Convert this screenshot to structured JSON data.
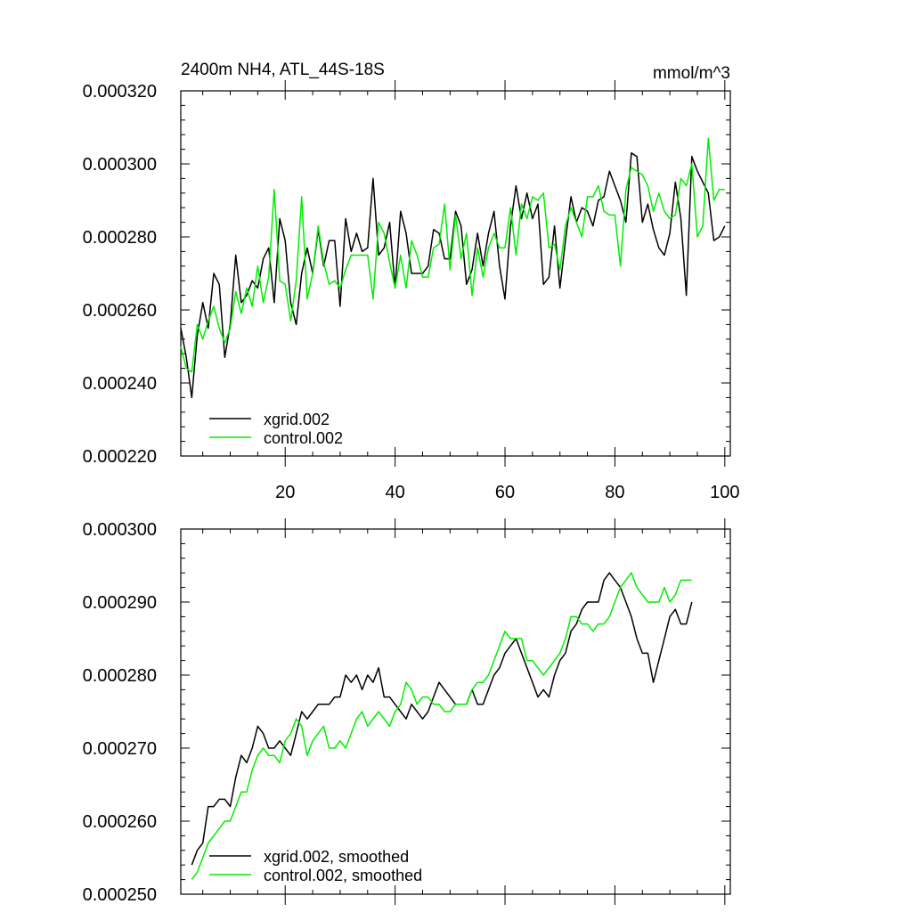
{
  "colors": {
    "xgrid": "#000000",
    "control": "#00ee00"
  },
  "chart_data": [
    {
      "type": "line",
      "title": "2400m NH4, ATL_44S-18S",
      "units": "mmol/m^3",
      "xlim": [
        1,
        101
      ],
      "ylim": [
        0.00022,
        0.00032
      ],
      "xticks": [
        20,
        40,
        60,
        80,
        100
      ],
      "xtick_labels": [
        "20",
        "40",
        "60",
        "80",
        "100"
      ],
      "yticks": [
        0.00022,
        0.00024,
        0.00026,
        0.00028,
        0.0003,
        0.00032
      ],
      "ytick_labels": [
        "0.000220",
        "0.000240",
        "0.000260",
        "0.000280",
        "0.000300",
        "0.000320"
      ],
      "legend_position": "bottom-left",
      "series": [
        {
          "name": "xgrid.002",
          "color": "#000000",
          "x_start": 1,
          "values": [
            0.000255,
            0.000247,
            0.000236,
            0.000253,
            0.000262,
            0.000255,
            0.00027,
            0.000267,
            0.000247,
            0.000256,
            0.000275,
            0.000262,
            0.000264,
            0.000268,
            0.000266,
            0.000274,
            0.000277,
            0.000262,
            0.000285,
            0.000279,
            0.000262,
            0.000256,
            0.00027,
            0.000277,
            0.00027,
            0.000282,
            0.000272,
            0.000279,
            0.000279,
            0.000261,
            0.000285,
            0.000276,
            0.000281,
            0.000276,
            0.000277,
            0.000296,
            0.000275,
            0.000277,
            0.000284,
            0.000266,
            0.000287,
            0.000281,
            0.00027,
            0.00027,
            0.00027,
            0.000272,
            0.000282,
            0.000281,
            0.000274,
            0.000274,
            0.000287,
            0.000283,
            0.000267,
            0.000271,
            0.000281,
            0.000272,
            0.000281,
            0.000287,
            0.000272,
            0.000263,
            0.000283,
            0.000294,
            0.000285,
            0.000292,
            0.000285,
            0.000289,
            0.000267,
            0.000269,
            0.000283,
            0.000266,
            0.000279,
            0.000291,
            0.000284,
            0.000288,
            0.000287,
            0.000283,
            0.00029,
            0.000291,
            0.000298,
            0.000294,
            0.00029,
            0.000284,
            0.000303,
            0.000302,
            0.000284,
            0.000289,
            0.000282,
            0.000277,
            0.000275,
            0.000281,
            0.000295,
            0.000285,
            0.000264,
            0.000302,
            0.000298,
            0.000295,
            0.000292,
            0.000279,
            0.00028,
            0.000283
          ]
        },
        {
          "name": "control.002",
          "color": "#00ee00",
          "x_start": 1,
          "values": [
            0.00025,
            0.000244,
            0.000243,
            0.000256,
            0.000252,
            0.000257,
            0.000261,
            0.000255,
            0.000251,
            0.000255,
            0.000265,
            0.000259,
            0.000266,
            0.000261,
            0.000272,
            0.000262,
            0.000269,
            0.000293,
            0.000268,
            0.000267,
            0.000257,
            0.000268,
            0.000291,
            0.000263,
            0.00027,
            0.000283,
            0.000273,
            0.000267,
            0.000268,
            0.000266,
            0.000271,
            0.000275,
            0.000275,
            0.000275,
            0.000275,
            0.000263,
            0.000284,
            0.000281,
            0.000273,
            0.000266,
            0.000275,
            0.000266,
            0.000279,
            0.000275,
            0.000269,
            0.000269,
            0.000277,
            0.000278,
            0.000289,
            0.000271,
            0.000286,
            0.000274,
            0.000281,
            0.000264,
            0.000277,
            0.000269,
            0.000277,
            0.000281,
            0.000277,
            0.000277,
            0.000288,
            0.000275,
            0.000289,
            0.000285,
            0.000291,
            0.00029,
            0.000292,
            0.000277,
            0.000278,
            0.000271,
            0.000283,
            0.000288,
            0.000284,
            0.00028,
            0.000291,
            0.000291,
            0.000294,
            0.000287,
            0.000286,
            0.000286,
            0.000272,
            0.000293,
            0.000299,
            0.000298,
            0.000297,
            0.000294,
            0.000287,
            0.000292,
            0.000287,
            0.000285,
            0.000286,
            0.000296,
            0.000294,
            0.0003,
            0.00028,
            0.000283,
            0.000307,
            0.00029,
            0.000293,
            0.000293
          ]
        }
      ]
    },
    {
      "type": "line",
      "ylim": [
        0.00025,
        0.0003
      ],
      "xlim": [
        1,
        101
      ],
      "yticks": [
        0.00025,
        0.00026,
        0.00027,
        0.00028,
        0.00029,
        0.0003
      ],
      "ytick_labels": [
        "0.000250",
        "0.000260",
        "0.000270",
        "0.000280",
        "0.000290",
        "0.000300"
      ],
      "xticks": [
        20,
        40,
        60,
        80,
        100
      ],
      "legend_position": "bottom-left",
      "series": [
        {
          "name": "xgrid.002, smoothed",
          "color": "#000000",
          "x_start": 3,
          "values": [
            0.000254,
            0.000256,
            0.000257,
            0.000262,
            0.000262,
            0.000263,
            0.000263,
            0.000262,
            0.000266,
            0.000269,
            0.000268,
            0.00027,
            0.000273,
            0.000272,
            0.00027,
            0.00027,
            0.000271,
            0.00027,
            0.000269,
            0.000272,
            0.000275,
            0.000274,
            0.000275,
            0.000276,
            0.000276,
            0.000276,
            0.000277,
            0.000277,
            0.00028,
            0.000279,
            0.00028,
            0.000278,
            0.00028,
            0.000279,
            0.000281,
            0.000277,
            0.000277,
            0.000276,
            0.000275,
            0.000274,
            0.000276,
            0.000275,
            0.000274,
            0.000275,
            0.000277,
            0.000279,
            0.000278,
            0.000277,
            0.000276,
            0.000276,
            0.000276,
            0.000278,
            0.000276,
            0.000276,
            0.000278,
            0.00028,
            0.000281,
            0.000283,
            0.000284,
            0.000285,
            0.000283,
            0.000281,
            0.000279,
            0.000277,
            0.000278,
            0.000277,
            0.00028,
            0.000282,
            0.000283,
            0.000286,
            0.000287,
            0.000289,
            0.00029,
            0.00029,
            0.00029,
            0.000293,
            0.000294,
            0.000293,
            0.000292,
            0.00029,
            0.000288,
            0.000285,
            0.000283,
            0.000283,
            0.000279,
            0.000282,
            0.000285,
            0.000288,
            0.000289,
            0.000287,
            0.000287,
            0.00029
          ]
        },
        {
          "name": "control.002, smoothed",
          "color": "#00ee00",
          "x_start": 3,
          "values": [
            0.000252,
            0.000253,
            0.000255,
            0.000257,
            0.000258,
            0.000259,
            0.00026,
            0.00026,
            0.000262,
            0.000264,
            0.000264,
            0.000267,
            0.000269,
            0.00027,
            0.000269,
            0.000269,
            0.000268,
            0.000271,
            0.000272,
            0.000274,
            0.000273,
            0.000269,
            0.000271,
            0.000272,
            0.000273,
            0.00027,
            0.00027,
            0.000271,
            0.00027,
            0.000272,
            0.000274,
            0.000275,
            0.000273,
            0.000274,
            0.000275,
            0.000274,
            0.000273,
            0.000275,
            0.000276,
            0.000279,
            0.000278,
            0.000276,
            0.000277,
            0.000277,
            0.000276,
            0.000276,
            0.000275,
            0.000275,
            0.000276,
            0.000276,
            0.000276,
            0.000278,
            0.000279,
            0.000279,
            0.00028,
            0.000282,
            0.000284,
            0.000286,
            0.000285,
            0.000285,
            0.000285,
            0.000282,
            0.000282,
            0.000281,
            0.00028,
            0.000281,
            0.000282,
            0.000283,
            0.000285,
            0.000288,
            0.000288,
            0.000287,
            0.000287,
            0.000286,
            0.000287,
            0.000287,
            0.000288,
            0.00029,
            0.000292,
            0.000293,
            0.000294,
            0.000292,
            0.000291,
            0.00029,
            0.00029,
            0.00029,
            0.000292,
            0.00029,
            0.000291,
            0.000293,
            0.000293,
            0.000293
          ]
        }
      ]
    }
  ]
}
